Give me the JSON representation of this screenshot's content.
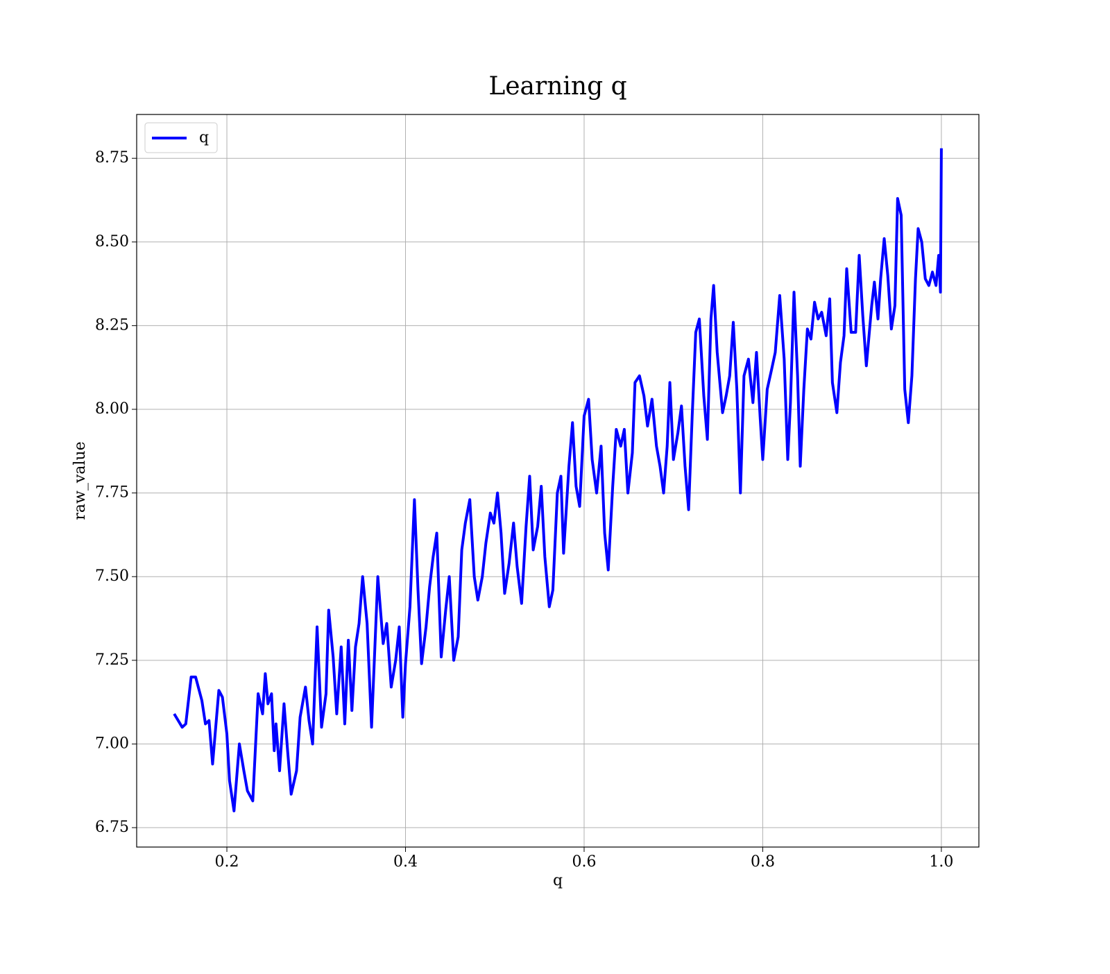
{
  "chart_data": {
    "type": "line",
    "title": "Learning q",
    "xlabel": "q",
    "ylabel": "raw_value",
    "series": [
      {
        "name": "q",
        "color": "#0000ff",
        "x": [
          0.141,
          0.15,
          0.154,
          0.16,
          0.165,
          0.172,
          0.176,
          0.18,
          0.184,
          0.191,
          0.195,
          0.2,
          0.203,
          0.208,
          0.214,
          0.219,
          0.223,
          0.229,
          0.235,
          0.24,
          0.243,
          0.246,
          0.25,
          0.253,
          0.255,
          0.259,
          0.264,
          0.268,
          0.272,
          0.278,
          0.282,
          0.288,
          0.292,
          0.296,
          0.301,
          0.306,
          0.311,
          0.314,
          0.319,
          0.323,
          0.328,
          0.332,
          0.336,
          0.34,
          0.344,
          0.348,
          0.352,
          0.357,
          0.362,
          0.369,
          0.375,
          0.379,
          0.384,
          0.389,
          0.393,
          0.397,
          0.4,
          0.405,
          0.41,
          0.414,
          0.418,
          0.423,
          0.427,
          0.431,
          0.435,
          0.44,
          0.445,
          0.449,
          0.454,
          0.459,
          0.463,
          0.467,
          0.472,
          0.477,
          0.481,
          0.486,
          0.49,
          0.495,
          0.499,
          0.503,
          0.507,
          0.511,
          0.516,
          0.521,
          0.525,
          0.53,
          0.535,
          0.539,
          0.543,
          0.548,
          0.552,
          0.556,
          0.561,
          0.565,
          0.57,
          0.574,
          0.577,
          0.583,
          0.587,
          0.591,
          0.595,
          0.6,
          0.605,
          0.609,
          0.614,
          0.619,
          0.623,
          0.627,
          0.632,
          0.636,
          0.641,
          0.645,
          0.649,
          0.654,
          0.657,
          0.662,
          0.667,
          0.671,
          0.676,
          0.681,
          0.685,
          0.689,
          0.693,
          0.696,
          0.7,
          0.705,
          0.709,
          0.713,
          0.717,
          0.721,
          0.725,
          0.729,
          0.734,
          0.738,
          0.742,
          0.745,
          0.749,
          0.755,
          0.759,
          0.763,
          0.767,
          0.771,
          0.775,
          0.779,
          0.784,
          0.789,
          0.793,
          0.797,
          0.8,
          0.805,
          0.81,
          0.814,
          0.819,
          0.824,
          0.828,
          0.831,
          0.835,
          0.839,
          0.842,
          0.846,
          0.85,
          0.854,
          0.858,
          0.862,
          0.866,
          0.871,
          0.875,
          0.878,
          0.883,
          0.887,
          0.891,
          0.894,
          0.899,
          0.904,
          0.908,
          0.912,
          0.916,
          0.922,
          0.925,
          0.929,
          0.932,
          0.936,
          0.94,
          0.944,
          0.948,
          0.951,
          0.955,
          0.959,
          0.963,
          0.967,
          0.971,
          0.974,
          0.978,
          0.982,
          0.986,
          0.99,
          0.994,
          0.997,
          0.999,
          1.0
        ],
        "values": [
          7.09,
          7.05,
          7.06,
          7.2,
          7.2,
          7.13,
          7.06,
          7.07,
          6.94,
          7.16,
          7.14,
          7.03,
          6.89,
          6.8,
          7.0,
          6.92,
          6.86,
          6.83,
          7.15,
          7.09,
          7.21,
          7.12,
          7.15,
          6.98,
          7.06,
          6.92,
          7.12,
          6.98,
          6.85,
          6.92,
          7.08,
          7.17,
          7.07,
          7.0,
          7.35,
          7.05,
          7.15,
          7.4,
          7.26,
          7.09,
          7.29,
          7.06,
          7.31,
          7.1,
          7.29,
          7.36,
          7.5,
          7.36,
          7.05,
          7.5,
          7.3,
          7.36,
          7.17,
          7.25,
          7.35,
          7.08,
          7.24,
          7.41,
          7.73,
          7.46,
          7.24,
          7.35,
          7.47,
          7.56,
          7.63,
          7.26,
          7.4,
          7.5,
          7.25,
          7.32,
          7.58,
          7.66,
          7.73,
          7.5,
          7.43,
          7.5,
          7.6,
          7.69,
          7.66,
          7.75,
          7.63,
          7.45,
          7.54,
          7.66,
          7.53,
          7.42,
          7.65,
          7.8,
          7.58,
          7.65,
          7.77,
          7.56,
          7.41,
          7.46,
          7.75,
          7.8,
          7.57,
          7.83,
          7.96,
          7.77,
          7.71,
          7.98,
          8.03,
          7.85,
          7.75,
          7.89,
          7.63,
          7.52,
          7.77,
          7.94,
          7.89,
          7.94,
          7.75,
          7.87,
          8.08,
          8.1,
          8.04,
          7.95,
          8.03,
          7.89,
          7.83,
          7.75,
          7.89,
          8.08,
          7.85,
          7.93,
          8.01,
          7.83,
          7.7,
          7.98,
          8.23,
          8.27,
          8.04,
          7.91,
          8.27,
          8.37,
          8.17,
          7.99,
          8.04,
          8.1,
          8.26,
          8.06,
          7.75,
          8.1,
          8.15,
          8.02,
          8.17,
          7.98,
          7.85,
          8.06,
          8.12,
          8.17,
          8.34,
          8.15,
          7.85,
          8.02,
          8.35,
          8.1,
          7.83,
          8.06,
          8.24,
          8.21,
          8.32,
          8.27,
          8.29,
          8.22,
          8.33,
          8.08,
          7.99,
          8.14,
          8.22,
          8.42,
          8.23,
          8.23,
          8.46,
          8.28,
          8.13,
          8.31,
          8.38,
          8.27,
          8.39,
          8.51,
          8.4,
          8.24,
          8.31,
          8.63,
          8.58,
          8.06,
          7.96,
          8.1,
          8.39,
          8.54,
          8.5,
          8.39,
          8.37,
          8.41,
          8.37,
          8.46,
          8.35,
          8.78
        ]
      }
    ],
    "xlim": [
      0.099,
      1.042
    ],
    "ylim": [
      6.692,
      8.881
    ],
    "xticks": [
      0.2,
      0.4,
      0.6,
      0.8,
      {
        "value": 1,
        "label": "1.0"
      }
    ],
    "yticks": [
      6.75,
      {
        "value": 7,
        "label": "7.00"
      },
      7.25,
      {
        "value": 7.5,
        "label": "7.50"
      },
      7.75,
      {
        "value": 8,
        "label": "8.00"
      },
      8.25,
      {
        "value": 8.5,
        "label": "8.50"
      },
      8.75
    ],
    "grid": true,
    "legend": "upper left"
  }
}
